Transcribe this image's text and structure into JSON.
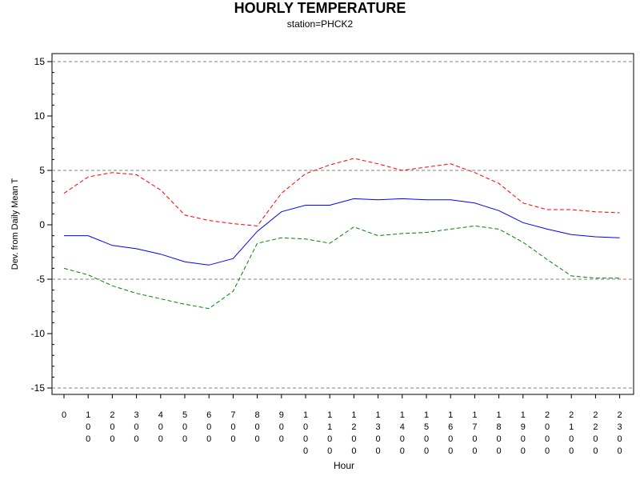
{
  "chart_data": {
    "type": "line",
    "title": "HOURLY TEMPERATURE",
    "subtitle": "station=PHCK2",
    "xlabel": "Hour",
    "ylabel": "Dev. from Daily Mean T",
    "ylim": [
      -15,
      15
    ],
    "yticks": [
      -15,
      -10,
      -5,
      0,
      5,
      10,
      15
    ],
    "reference_lines": [
      -15,
      -5,
      5,
      15
    ],
    "x": [
      "0",
      "100",
      "200",
      "300",
      "400",
      "500",
      "600",
      "700",
      "800",
      "900",
      "1000",
      "1100",
      "1200",
      "1300",
      "1400",
      "1500",
      "1600",
      "1700",
      "1800",
      "1900",
      "2000",
      "2100",
      "2200",
      "2300"
    ],
    "series": [
      {
        "color": "#ff0000",
        "style": "dashed",
        "values": [
          2.9,
          4.4,
          4.8,
          4.6,
          3.2,
          0.9,
          0.4,
          0.1,
          -0.1,
          2.9,
          4.7,
          5.5,
          6.1,
          5.6,
          5.0,
          5.3,
          5.6,
          4.8,
          3.8,
          2.0,
          1.4,
          1.4,
          1.2,
          1.1
        ]
      },
      {
        "color": "#0000ff",
        "style": "solid",
        "values": [
          -1.0,
          -1.0,
          -1.9,
          -2.2,
          -2.7,
          -3.4,
          -3.7,
          -3.1,
          -0.6,
          1.2,
          1.8,
          1.8,
          2.4,
          2.3,
          2.4,
          2.3,
          2.3,
          2.0,
          1.3,
          0.2,
          -0.4,
          -0.9,
          -1.1,
          -1.2
        ]
      },
      {
        "color": "#008000",
        "style": "dashed",
        "values": [
          -4.0,
          -4.6,
          -5.6,
          -6.3,
          -6.8,
          -7.3,
          -7.7,
          -6.1,
          -1.7,
          -1.2,
          -1.3,
          -1.7,
          -0.2,
          -1.0,
          -0.8,
          -0.7,
          -0.4,
          -0.1,
          -0.4,
          -1.6,
          -3.2,
          -4.7,
          -4.9,
          -4.9
        ]
      }
    ]
  }
}
